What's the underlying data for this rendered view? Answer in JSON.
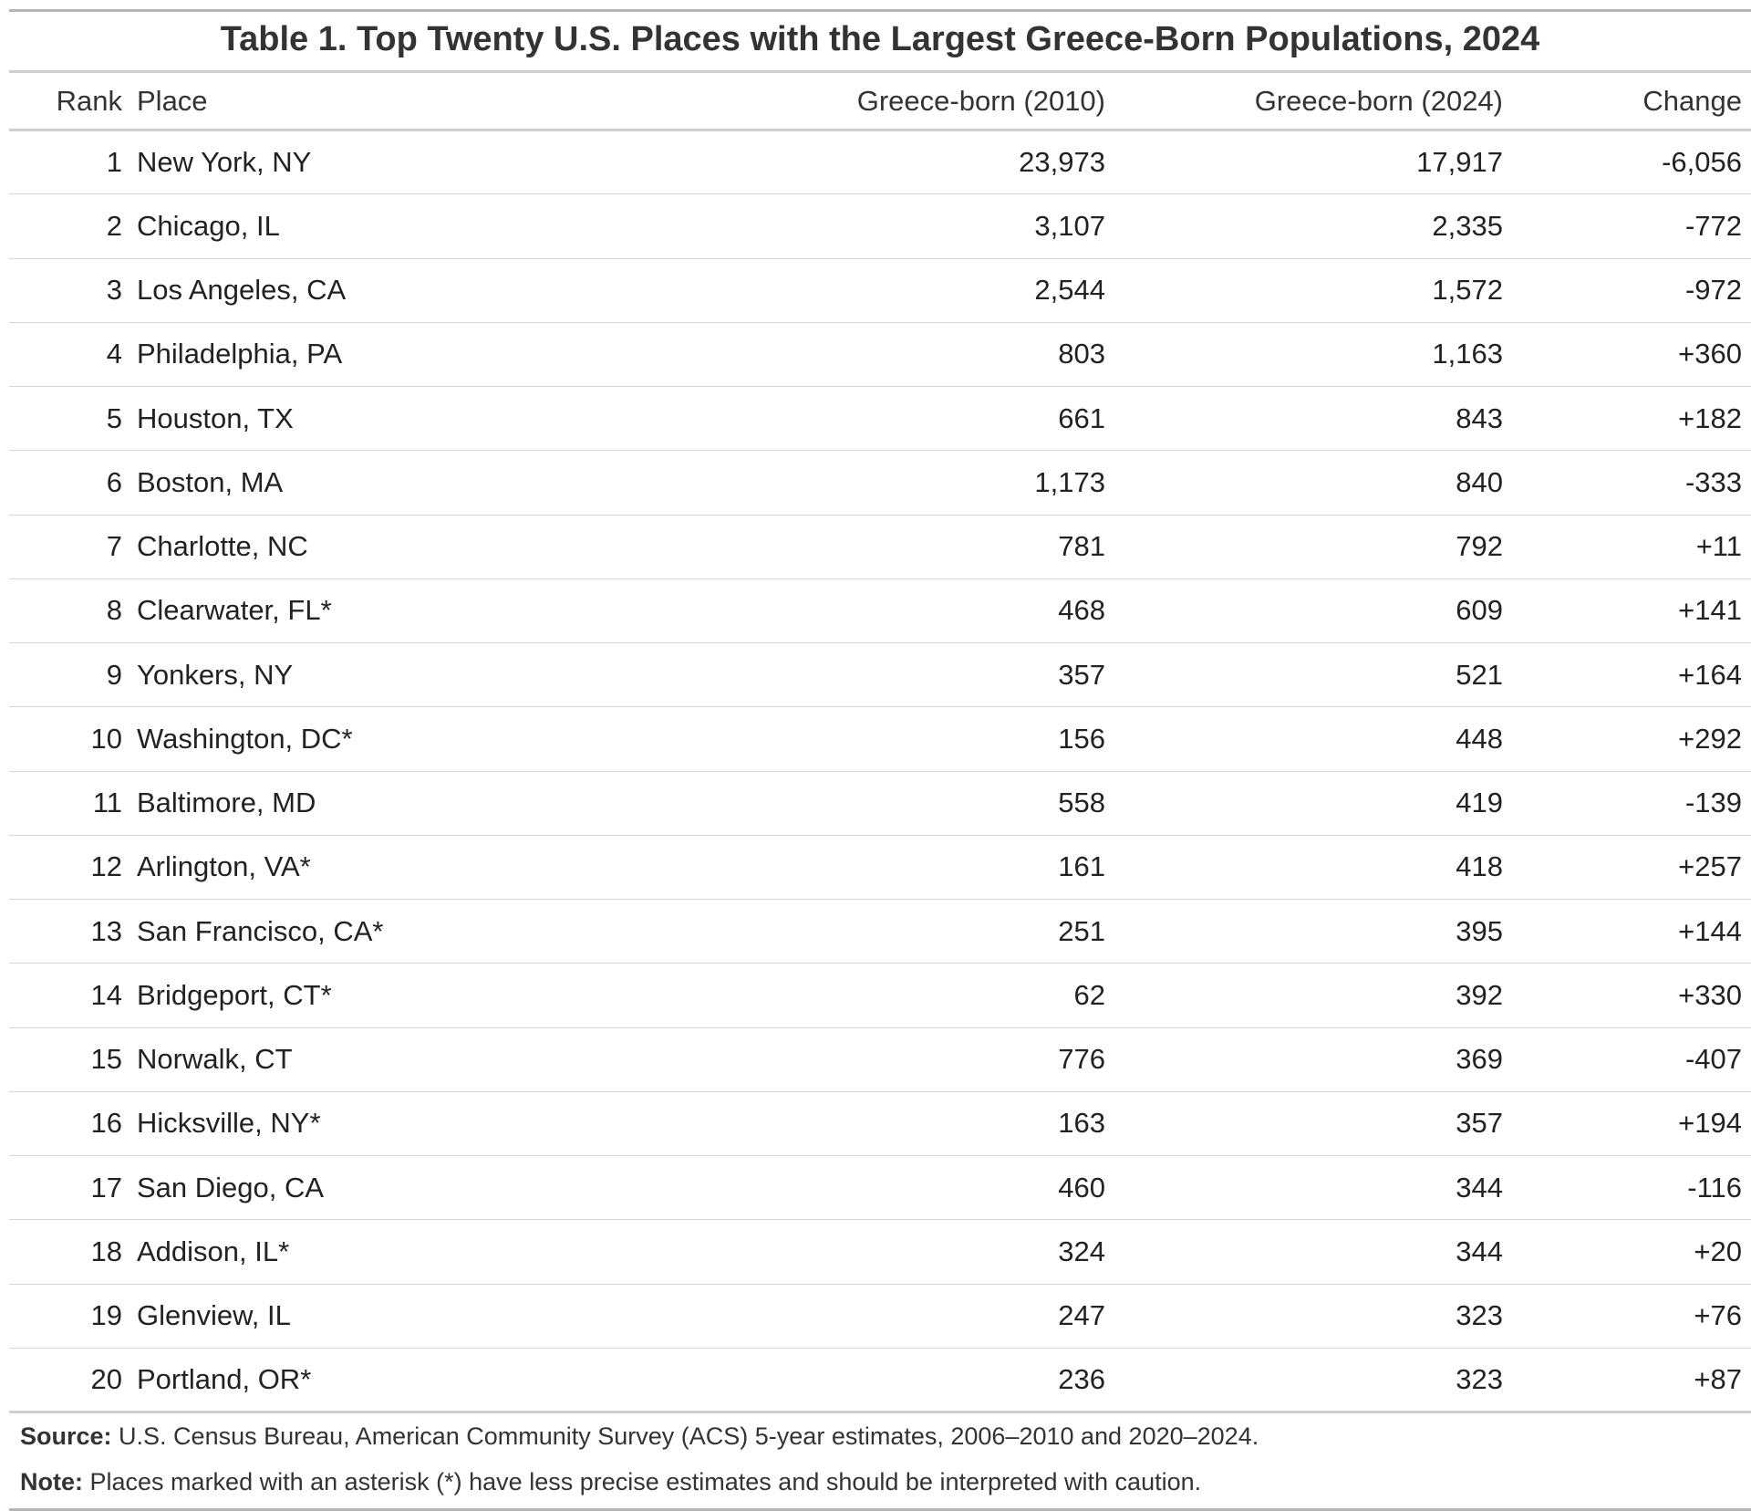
{
  "chart_data": {
    "type": "table",
    "title": "Table 1. Top Twenty U.S. Places with the Largest Greece-Born Populations, 2024",
    "columns": [
      "Rank",
      "Place",
      "Greece-born (2010)",
      "Greece-born (2024)",
      "Change"
    ],
    "rows": [
      [
        "1",
        "New York, NY",
        "23,973",
        "17,917",
        "-6,056"
      ],
      [
        "2",
        "Chicago, IL",
        "3,107",
        "2,335",
        "-772"
      ],
      [
        "3",
        "Los Angeles, CA",
        "2,544",
        "1,572",
        "-972"
      ],
      [
        "4",
        "Philadelphia, PA",
        "803",
        "1,163",
        "+360"
      ],
      [
        "5",
        "Houston, TX",
        "661",
        "843",
        "+182"
      ],
      [
        "6",
        "Boston, MA",
        "1,173",
        "840",
        "-333"
      ],
      [
        "7",
        "Charlotte, NC",
        "781",
        "792",
        "+11"
      ],
      [
        "8",
        "Clearwater, FL*",
        "468",
        "609",
        "+141"
      ],
      [
        "9",
        "Yonkers, NY",
        "357",
        "521",
        "+164"
      ],
      [
        "10",
        "Washington, DC*",
        "156",
        "448",
        "+292"
      ],
      [
        "11",
        "Baltimore, MD",
        "558",
        "419",
        "-139"
      ],
      [
        "12",
        "Arlington, VA*",
        "161",
        "418",
        "+257"
      ],
      [
        "13",
        "San Francisco, CA*",
        "251",
        "395",
        "+144"
      ],
      [
        "14",
        "Bridgeport, CT*",
        "62",
        "392",
        "+330"
      ],
      [
        "15",
        "Norwalk, CT",
        "776",
        "369",
        "-407"
      ],
      [
        "16",
        "Hicksville, NY*",
        "163",
        "357",
        "+194"
      ],
      [
        "17",
        "San Diego, CA",
        "460",
        "344",
        "-116"
      ],
      [
        "18",
        "Addison, IL*",
        "324",
        "344",
        "+20"
      ],
      [
        "19",
        "Glenview, IL",
        "247",
        "323",
        "+76"
      ],
      [
        "20",
        "Portland, OR*",
        "236",
        "323",
        "+87"
      ]
    ],
    "source_label": "Source:",
    "source_text": "U.S. Census Bureau, American Community Survey (ACS) 5-year estimates, 2006–2010 and 2020–2024.",
    "note_label": "Note:",
    "note_text": "Places marked with an asterisk (*) have less precise estimates and should be interpreted with caution."
  }
}
